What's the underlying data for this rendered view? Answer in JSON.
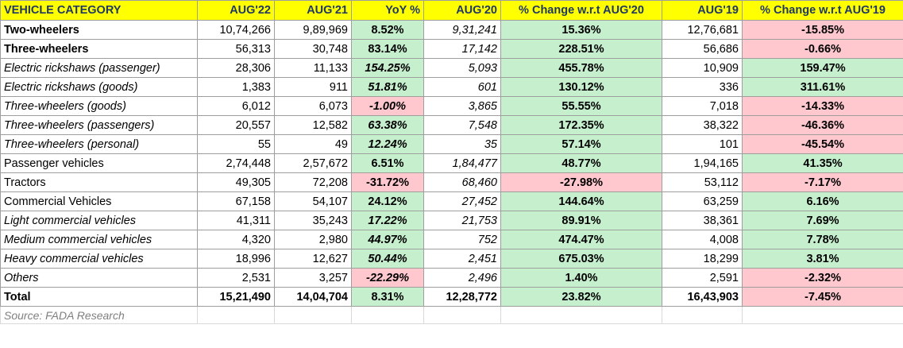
{
  "headers": [
    "VEHICLE CATEGORY",
    "AUG'22",
    "AUG'21",
    "YoY %",
    "AUG'20",
    "% Change w.r.t AUG'20",
    "AUG'19",
    "% Change w.r.t AUG'19"
  ],
  "rows": [
    {
      "category": "Two-wheelers",
      "aug22": "10,74,266",
      "aug21": "9,89,969",
      "yoy": "8.52%",
      "aug20": "9,31,241",
      "chg20": "15.36%",
      "aug19": "12,76,681",
      "chg19": "-15.85%"
    },
    {
      "category": "Three-wheelers",
      "aug22": "56,313",
      "aug21": "30,748",
      "yoy": "83.14%",
      "aug20": "17,142",
      "chg20": "228.51%",
      "aug19": "56,686",
      "chg19": "-0.66%"
    },
    {
      "category": "Electric rickshaws (passenger)",
      "aug22": "28,306",
      "aug21": "11,133",
      "yoy": "154.25%",
      "aug20": "5,093",
      "chg20": "455.78%",
      "aug19": "10,909",
      "chg19": "159.47%"
    },
    {
      "category": "Electric rickshaws (goods)",
      "aug22": "1,383",
      "aug21": "911",
      "yoy": "51.81%",
      "aug20": "601",
      "chg20": "130.12%",
      "aug19": "336",
      "chg19": "311.61%"
    },
    {
      "category": "Three-wheelers (goods)",
      "aug22": "6,012",
      "aug21": "6,073",
      "yoy": "-1.00%",
      "aug20": "3,865",
      "chg20": "55.55%",
      "aug19": "7,018",
      "chg19": "-14.33%"
    },
    {
      "category": "Three-wheelers (passengers)",
      "aug22": "20,557",
      "aug21": "12,582",
      "yoy": "63.38%",
      "aug20": "7,548",
      "chg20": "172.35%",
      "aug19": "38,322",
      "chg19": "-46.36%"
    },
    {
      "category": "Three-wheelers (personal)",
      "aug22": "55",
      "aug21": "49",
      "yoy": "12.24%",
      "aug20": "35",
      "chg20": "57.14%",
      "aug19": "101",
      "chg19": "-45.54%"
    },
    {
      "category": "Passenger vehicles",
      "aug22": "2,74,448",
      "aug21": "2,57,672",
      "yoy": "6.51%",
      "aug20": "1,84,477",
      "chg20": "48.77%",
      "aug19": "1,94,165",
      "chg19": "41.35%"
    },
    {
      "category": "Tractors",
      "aug22": "49,305",
      "aug21": "72,208",
      "yoy": "-31.72%",
      "aug20": "68,460",
      "chg20": "-27.98%",
      "aug19": "53,112",
      "chg19": "-7.17%"
    },
    {
      "category": "Commercial Vehicles",
      "aug22": "67,158",
      "aug21": "54,107",
      "yoy": "24.12%",
      "aug20": "27,452",
      "chg20": "144.64%",
      "aug19": "63,259",
      "chg19": "6.16%"
    },
    {
      "category": "Light commercial vehicles",
      "aug22": "41,311",
      "aug21": "35,243",
      "yoy": "17.22%",
      "aug20": "21,753",
      "chg20": "89.91%",
      "aug19": "38,361",
      "chg19": "7.69%"
    },
    {
      "category": "Medium commercial vehicles",
      "aug22": "4,320",
      "aug21": "2,980",
      "yoy": "44.97%",
      "aug20": "752",
      "chg20": "474.47%",
      "aug19": "4,008",
      "chg19": "7.78%"
    },
    {
      "category": "Heavy commercial vehicles",
      "aug22": "18,996",
      "aug21": "12,627",
      "yoy": "50.44%",
      "aug20": "2,451",
      "chg20": "675.03%",
      "aug19": "18,299",
      "chg19": "3.81%"
    },
    {
      "category": "Others",
      "aug22": "2,531",
      "aug21": "3,257",
      "yoy": "-22.29%",
      "aug20": "2,496",
      "chg20": "1.40%",
      "aug19": "2,591",
      "chg19": "-2.32%"
    },
    {
      "category": "Total",
      "aug22": "15,21,490",
      "aug21": "14,04,704",
      "yoy": "8.31%",
      "aug20": "12,28,772",
      "chg20": "23.82%",
      "aug19": "16,43,903",
      "chg19": "-7.45%"
    }
  ],
  "source": "Source: FADA Research",
  "colors": {
    "header_bg": "#ffff00",
    "header_text": "#1f3864",
    "positive_bg": "#c6efce",
    "positive_text": "#006100",
    "negative_bg": "#ffc7ce",
    "negative_text": "#9c0006"
  }
}
